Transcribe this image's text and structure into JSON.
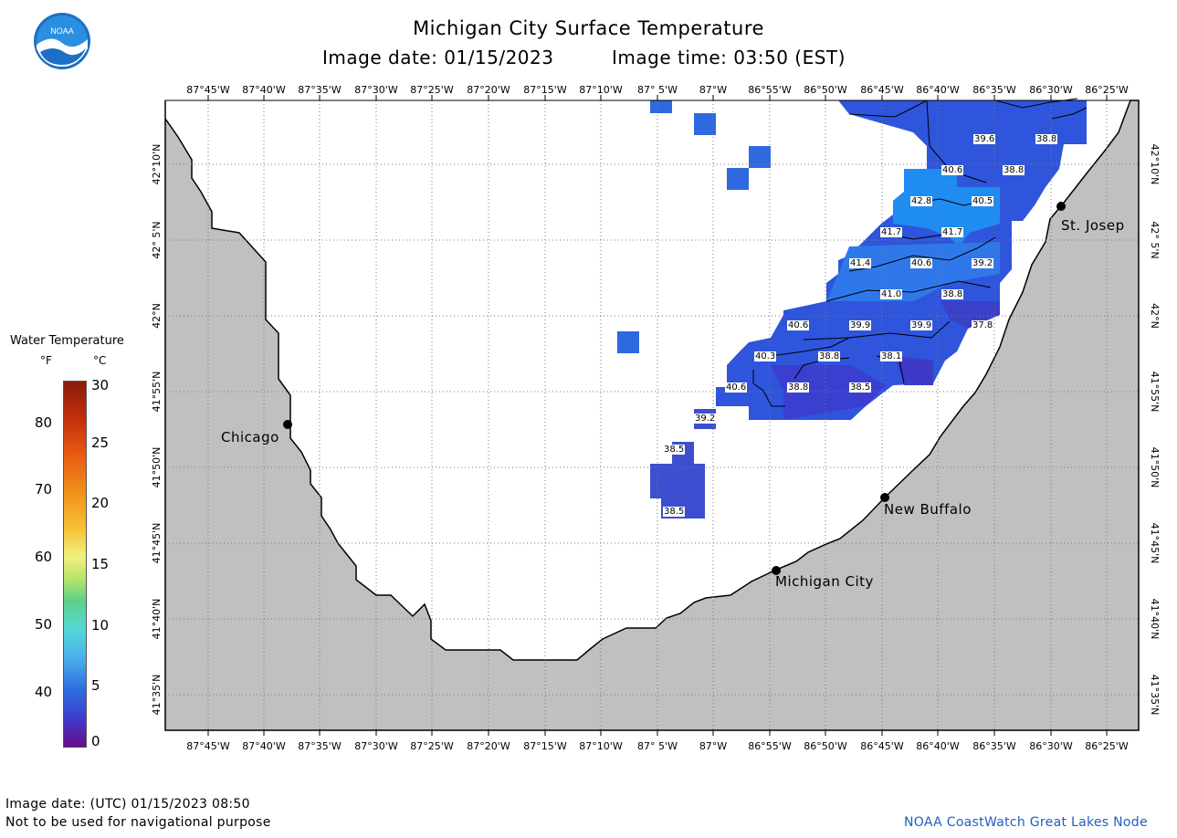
{
  "header": {
    "title": "Michigan City Surface Temperature",
    "image_date": "Image date: 01/15/2023",
    "image_time": "Image time: 03:50 (EST)"
  },
  "logo": {
    "text": "NOAA"
  },
  "map": {
    "lon_labels": [
      "87°45'W",
      "87°40'W",
      "87°35'W",
      "87°30'W",
      "87°25'W",
      "87°20'W",
      "87°15'W",
      "87°10'W",
      "87° 5'W",
      "87°W",
      "86°55'W",
      "86°50'W",
      "86°45'W",
      "86°40'W",
      "86°35'W",
      "86°30'W",
      "86°25'W"
    ],
    "lat_labels": [
      "42°10'N",
      "42° 5'N",
      "42°N",
      "41°55'N",
      "41°50'N",
      "41°45'N",
      "41°40'N",
      "41°35'N"
    ],
    "cities": [
      {
        "name": "Chicago"
      },
      {
        "name": "St. Josep"
      },
      {
        "name": "New Buffalo"
      },
      {
        "name": "Michigan City"
      }
    ],
    "temperature_labels": [
      "39.6",
      "38.8",
      "40.6",
      "38.8",
      "42.8",
      "40.5",
      "41.7",
      "41.7",
      "41.4",
      "40.6",
      "39.2",
      "41.0",
      "38.8",
      "40.6",
      "39.9",
      "39.9",
      "37.8",
      "40.3",
      "38.8",
      "38.1",
      "40.6",
      "38.8",
      "38.5",
      "39.2",
      "38.5",
      "38.5"
    ],
    "colors": {
      "land": "#c0c0c0",
      "water": "#ffffff",
      "grid": "#7a7a7a"
    }
  },
  "legend": {
    "title": "Water Temperature",
    "unit_f": "°F",
    "unit_c": "°C",
    "f_ticks": [
      "80",
      "70",
      "60",
      "50",
      "40"
    ],
    "c_ticks": [
      "30",
      "25",
      "20",
      "15",
      "10",
      "5",
      "0"
    ]
  },
  "footer": {
    "utc_date": "Image date: (UTC) 01/15/2023  08:50",
    "disclaimer": "Not to be used for navigational purpose",
    "credit": "NOAA CoastWatch Great Lakes Node"
  }
}
